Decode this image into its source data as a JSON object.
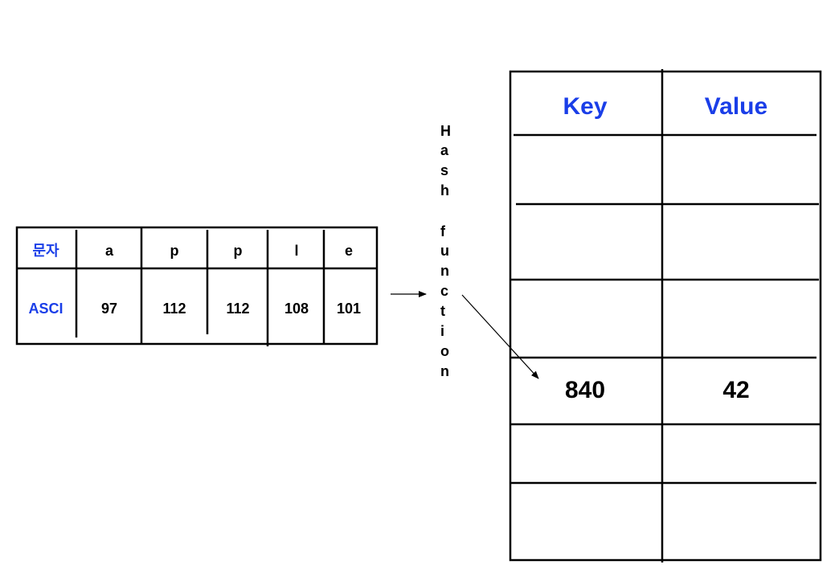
{
  "ascii_table": {
    "row_headers": [
      "문자",
      "ASCI"
    ],
    "chars": [
      "a",
      "p",
      "p",
      "l",
      "e"
    ],
    "codes": [
      "97",
      "112",
      "112",
      "108",
      "101"
    ]
  },
  "hash_function": {
    "letters": [
      "H",
      "a",
      "s",
      "h",
      "",
      "f",
      "u",
      "n",
      "c",
      "t",
      "i",
      "o",
      "n"
    ]
  },
  "hash_table": {
    "headers": {
      "key": "Key",
      "value": "Value"
    },
    "filled_row": {
      "key": "840",
      "value": "42"
    }
  },
  "colors": {
    "label_blue": "#1a3ee8",
    "line": "#000000"
  }
}
